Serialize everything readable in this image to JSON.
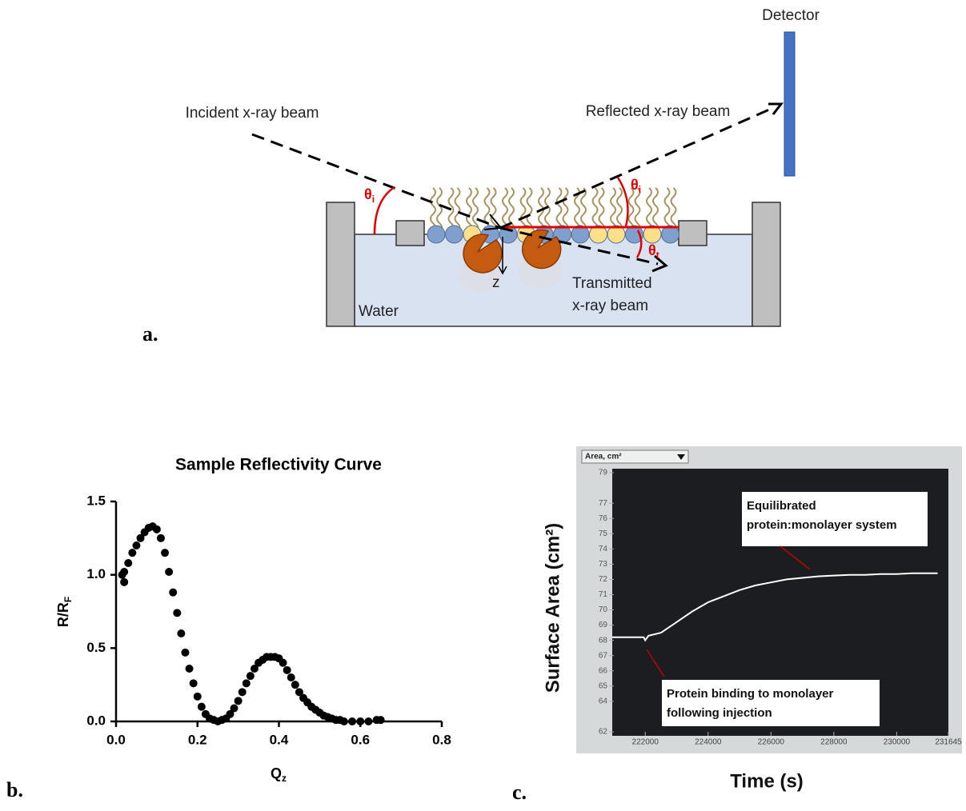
{
  "diagram": {
    "detector": "Detector",
    "incident": "Incident x-ray beam",
    "reflected": "Reflected x-ray beam",
    "theta_i_left": "θ",
    "theta_i_left_sub": "i",
    "theta_i_right": "θ",
    "theta_i_right_sub": "i",
    "theta_t": "θ",
    "theta_t_sub": "t",
    "z": "z",
    "transmitted": [
      "Transmitted",
      "x-ray beam"
    ],
    "water": "Water"
  },
  "panel_labels": [
    "a.",
    "b.",
    "c."
  ],
  "chart_data": [
    {
      "type": "scatter",
      "title": "Sample  Reflectivity Curve",
      "x_label": "Q",
      "x_label_sub": "z",
      "y_label": "R/R",
      "y_label_sub": "F",
      "color": "#000000",
      "x": [
        0.015,
        0.02,
        0.02,
        0.03,
        0.04,
        0.05,
        0.06,
        0.07,
        0.08,
        0.09,
        0.1,
        0.11,
        0.12,
        0.13,
        0.14,
        0.15,
        0.16,
        0.17,
        0.18,
        0.19,
        0.2,
        0.21,
        0.22,
        0.23,
        0.24,
        0.25,
        0.26,
        0.27,
        0.28,
        0.29,
        0.3,
        0.31,
        0.32,
        0.33,
        0.34,
        0.35,
        0.36,
        0.37,
        0.38,
        0.39,
        0.4,
        0.41,
        0.42,
        0.43,
        0.44,
        0.45,
        0.46,
        0.47,
        0.48,
        0.49,
        0.5,
        0.51,
        0.52,
        0.53,
        0.54,
        0.55,
        0.56,
        0.58,
        0.6,
        0.62,
        0.64,
        0.65
      ],
      "values": [
        1.0,
        0.95,
        1.02,
        1.08,
        1.15,
        1.2,
        1.25,
        1.29,
        1.32,
        1.33,
        1.31,
        1.25,
        1.15,
        1.02,
        0.88,
        0.74,
        0.6,
        0.47,
        0.36,
        0.26,
        0.17,
        0.1,
        0.05,
        0.02,
        0.01,
        0.0,
        0.01,
        0.02,
        0.05,
        0.09,
        0.14,
        0.2,
        0.26,
        0.31,
        0.36,
        0.4,
        0.42,
        0.44,
        0.44,
        0.44,
        0.43,
        0.4,
        0.35,
        0.3,
        0.25,
        0.2,
        0.16,
        0.13,
        0.1,
        0.08,
        0.06,
        0.04,
        0.03,
        0.02,
        0.01,
        0.01,
        0.0,
        0.0,
        0.0,
        0.0,
        0.01,
        0.01
      ],
      "xlim": [
        0,
        0.8
      ],
      "ylim": [
        0,
        1.5
      ],
      "xticks": [
        {
          "value": 0,
          "label": "0.0"
        },
        {
          "value": 0.2,
          "label": "0.2"
        },
        {
          "value": 0.4,
          "label": "0.4"
        },
        {
          "value": 0.6,
          "label": "0.6"
        },
        {
          "value": 0.8,
          "label": "0.8"
        }
      ],
      "yticks": [
        {
          "value": 0,
          "label": "0.0"
        },
        {
          "value": 0.5,
          "label": "0.5"
        },
        {
          "value": 1,
          "label": "1.0"
        },
        {
          "value": 1.5,
          "label": "1.5"
        }
      ]
    },
    {
      "type": "line",
      "x_label": "Time (s)",
      "y_label": "Surface Area (cm²)",
      "screen_label": "Area, cm²",
      "color": "#ffffff",
      "x": [
        220950,
        221500,
        221950,
        222000,
        222100,
        222500,
        223000,
        223500,
        224000,
        224500,
        225000,
        225500,
        226000,
        226500,
        227000,
        227500,
        228000,
        228500,
        229000,
        229500,
        230000,
        230500,
        231000,
        231300
      ],
      "values": [
        68.2,
        68.2,
        68.2,
        68.0,
        68.3,
        68.5,
        69.2,
        69.9,
        70.5,
        70.9,
        71.3,
        71.6,
        71.8,
        72.0,
        72.1,
        72.2,
        72.25,
        72.3,
        72.3,
        72.35,
        72.35,
        72.4,
        72.4,
        72.4
      ],
      "xlim": [
        220950,
        231645
      ],
      "ylim": [
        62,
        79
      ],
      "xticks": [
        222000,
        224000,
        226000,
        228000,
        230000,
        231645
      ],
      "yticks": [
        62,
        64,
        65,
        66,
        67,
        68,
        69,
        70,
        71,
        72,
        73,
        74,
        75,
        76,
        77,
        79
      ],
      "annotations": [
        {
          "lines": [
            "Equilibrated",
            "protein:monolayer system"
          ]
        },
        {
          "lines": [
            "Protein binding to monolayer",
            "following injection"
          ]
        }
      ]
    }
  ]
}
